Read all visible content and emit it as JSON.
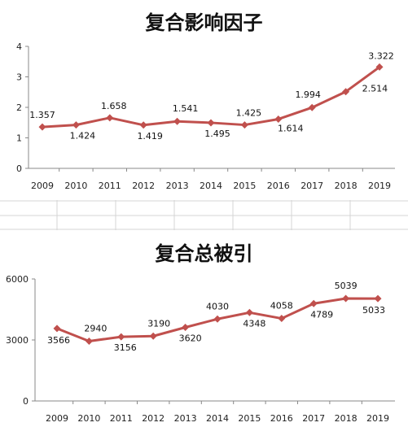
{
  "chart_data": [
    {
      "type": "line",
      "title": "复合影响因子",
      "x": [
        "2009",
        "2010",
        "2011",
        "2012",
        "2013",
        "2014",
        "2015",
        "2016",
        "2017",
        "2018",
        "2019"
      ],
      "values": [
        1.357,
        1.424,
        1.658,
        1.419,
        1.541,
        1.495,
        1.425,
        1.614,
        1.994,
        2.514,
        3.322
      ],
      "value_labels": [
        "1.357",
        "1.424",
        "1.658",
        "1.419",
        "1.541",
        "1.495",
        "1.425",
        "1.614",
        "1.994",
        "2.514",
        "3.322"
      ],
      "y_ticks": [
        "0",
        "1",
        "2",
        "3",
        "4"
      ],
      "ylim": [
        0,
        4
      ],
      "grid": false,
      "color": "#c0504d"
    },
    {
      "type": "line",
      "title": "复合总被引",
      "x": [
        "2009",
        "2010",
        "2011",
        "2012",
        "2013",
        "2014",
        "2015",
        "2016",
        "2017",
        "2018",
        "2019"
      ],
      "values": [
        3566,
        2940,
        3156,
        3190,
        3620,
        4030,
        4348,
        4058,
        4789,
        5039,
        5033
      ],
      "value_labels": [
        "3566",
        "2940",
        "3156",
        "3190",
        "3620",
        "4030",
        "4348",
        "4058",
        "4789",
        "5039",
        "5033"
      ],
      "y_ticks": [
        "0",
        "3000",
        "6000"
      ],
      "ylim": [
        0,
        6000
      ],
      "grid": false,
      "color": "#c0504d"
    }
  ]
}
